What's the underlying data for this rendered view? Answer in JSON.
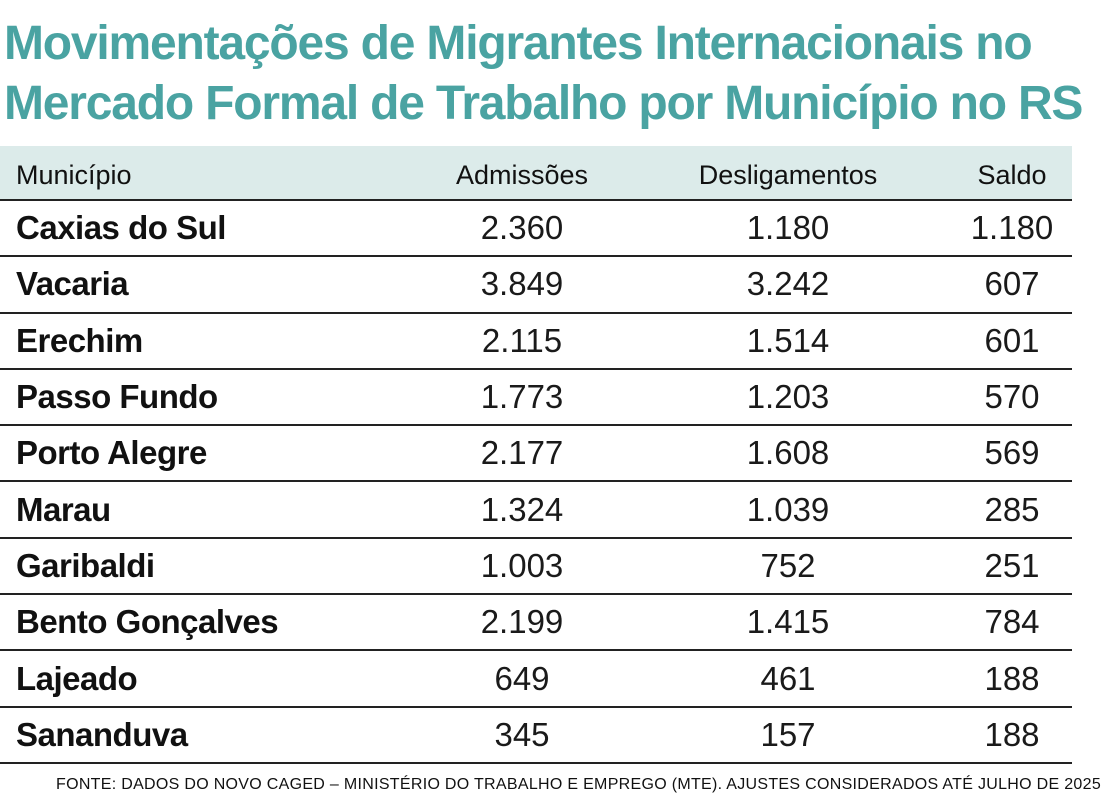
{
  "title": {
    "line1": "Movimentações de Migrantes Internacionais no",
    "line2": "Mercado Formal de Trabalho por Município no RS"
  },
  "table": {
    "headers": {
      "municipio": "Município",
      "admissoes": "Admissões",
      "desligamentos": "Desligamentos",
      "saldo": "Saldo"
    },
    "rows": [
      {
        "municipio": "Caxias do Sul",
        "admissoes": "2.360",
        "desligamentos": "1.180",
        "saldo": "1.180"
      },
      {
        "municipio": "Vacaria",
        "admissoes": "3.849",
        "desligamentos": "3.242",
        "saldo": "607"
      },
      {
        "municipio": "Erechim",
        "admissoes": "2.115",
        "desligamentos": "1.514",
        "saldo": "601"
      },
      {
        "municipio": "Passo Fundo",
        "admissoes": "1.773",
        "desligamentos": "1.203",
        "saldo": "570"
      },
      {
        "municipio": "Porto Alegre",
        "admissoes": "2.177",
        "desligamentos": "1.608",
        "saldo": "569"
      },
      {
        "municipio": "Marau",
        "admissoes": "1.324",
        "desligamentos": "1.039",
        "saldo": "285"
      },
      {
        "municipio": "Garibaldi",
        "admissoes": "1.003",
        "desligamentos": "752",
        "saldo": "251"
      },
      {
        "municipio": "Bento Gonçalves",
        "admissoes": "2.199",
        "desligamentos": "1.415",
        "saldo": "784"
      },
      {
        "municipio": "Lajeado",
        "admissoes": "649",
        "desligamentos": "461",
        "saldo": "188"
      },
      {
        "municipio": "Sananduva",
        "admissoes": "345",
        "desligamentos": "157",
        "saldo": "188"
      }
    ]
  },
  "source": "FONTE: DADOS DO NOVO CAGED – MINISTÉRIO DO TRABALHO E EMPREGO (MTE). AJUSTES CONSIDERADOS ATÉ JULHO DE 2025",
  "colors": {
    "title": "#4aa3a2",
    "header_bg": "#dcebea",
    "rule": "#222222"
  }
}
